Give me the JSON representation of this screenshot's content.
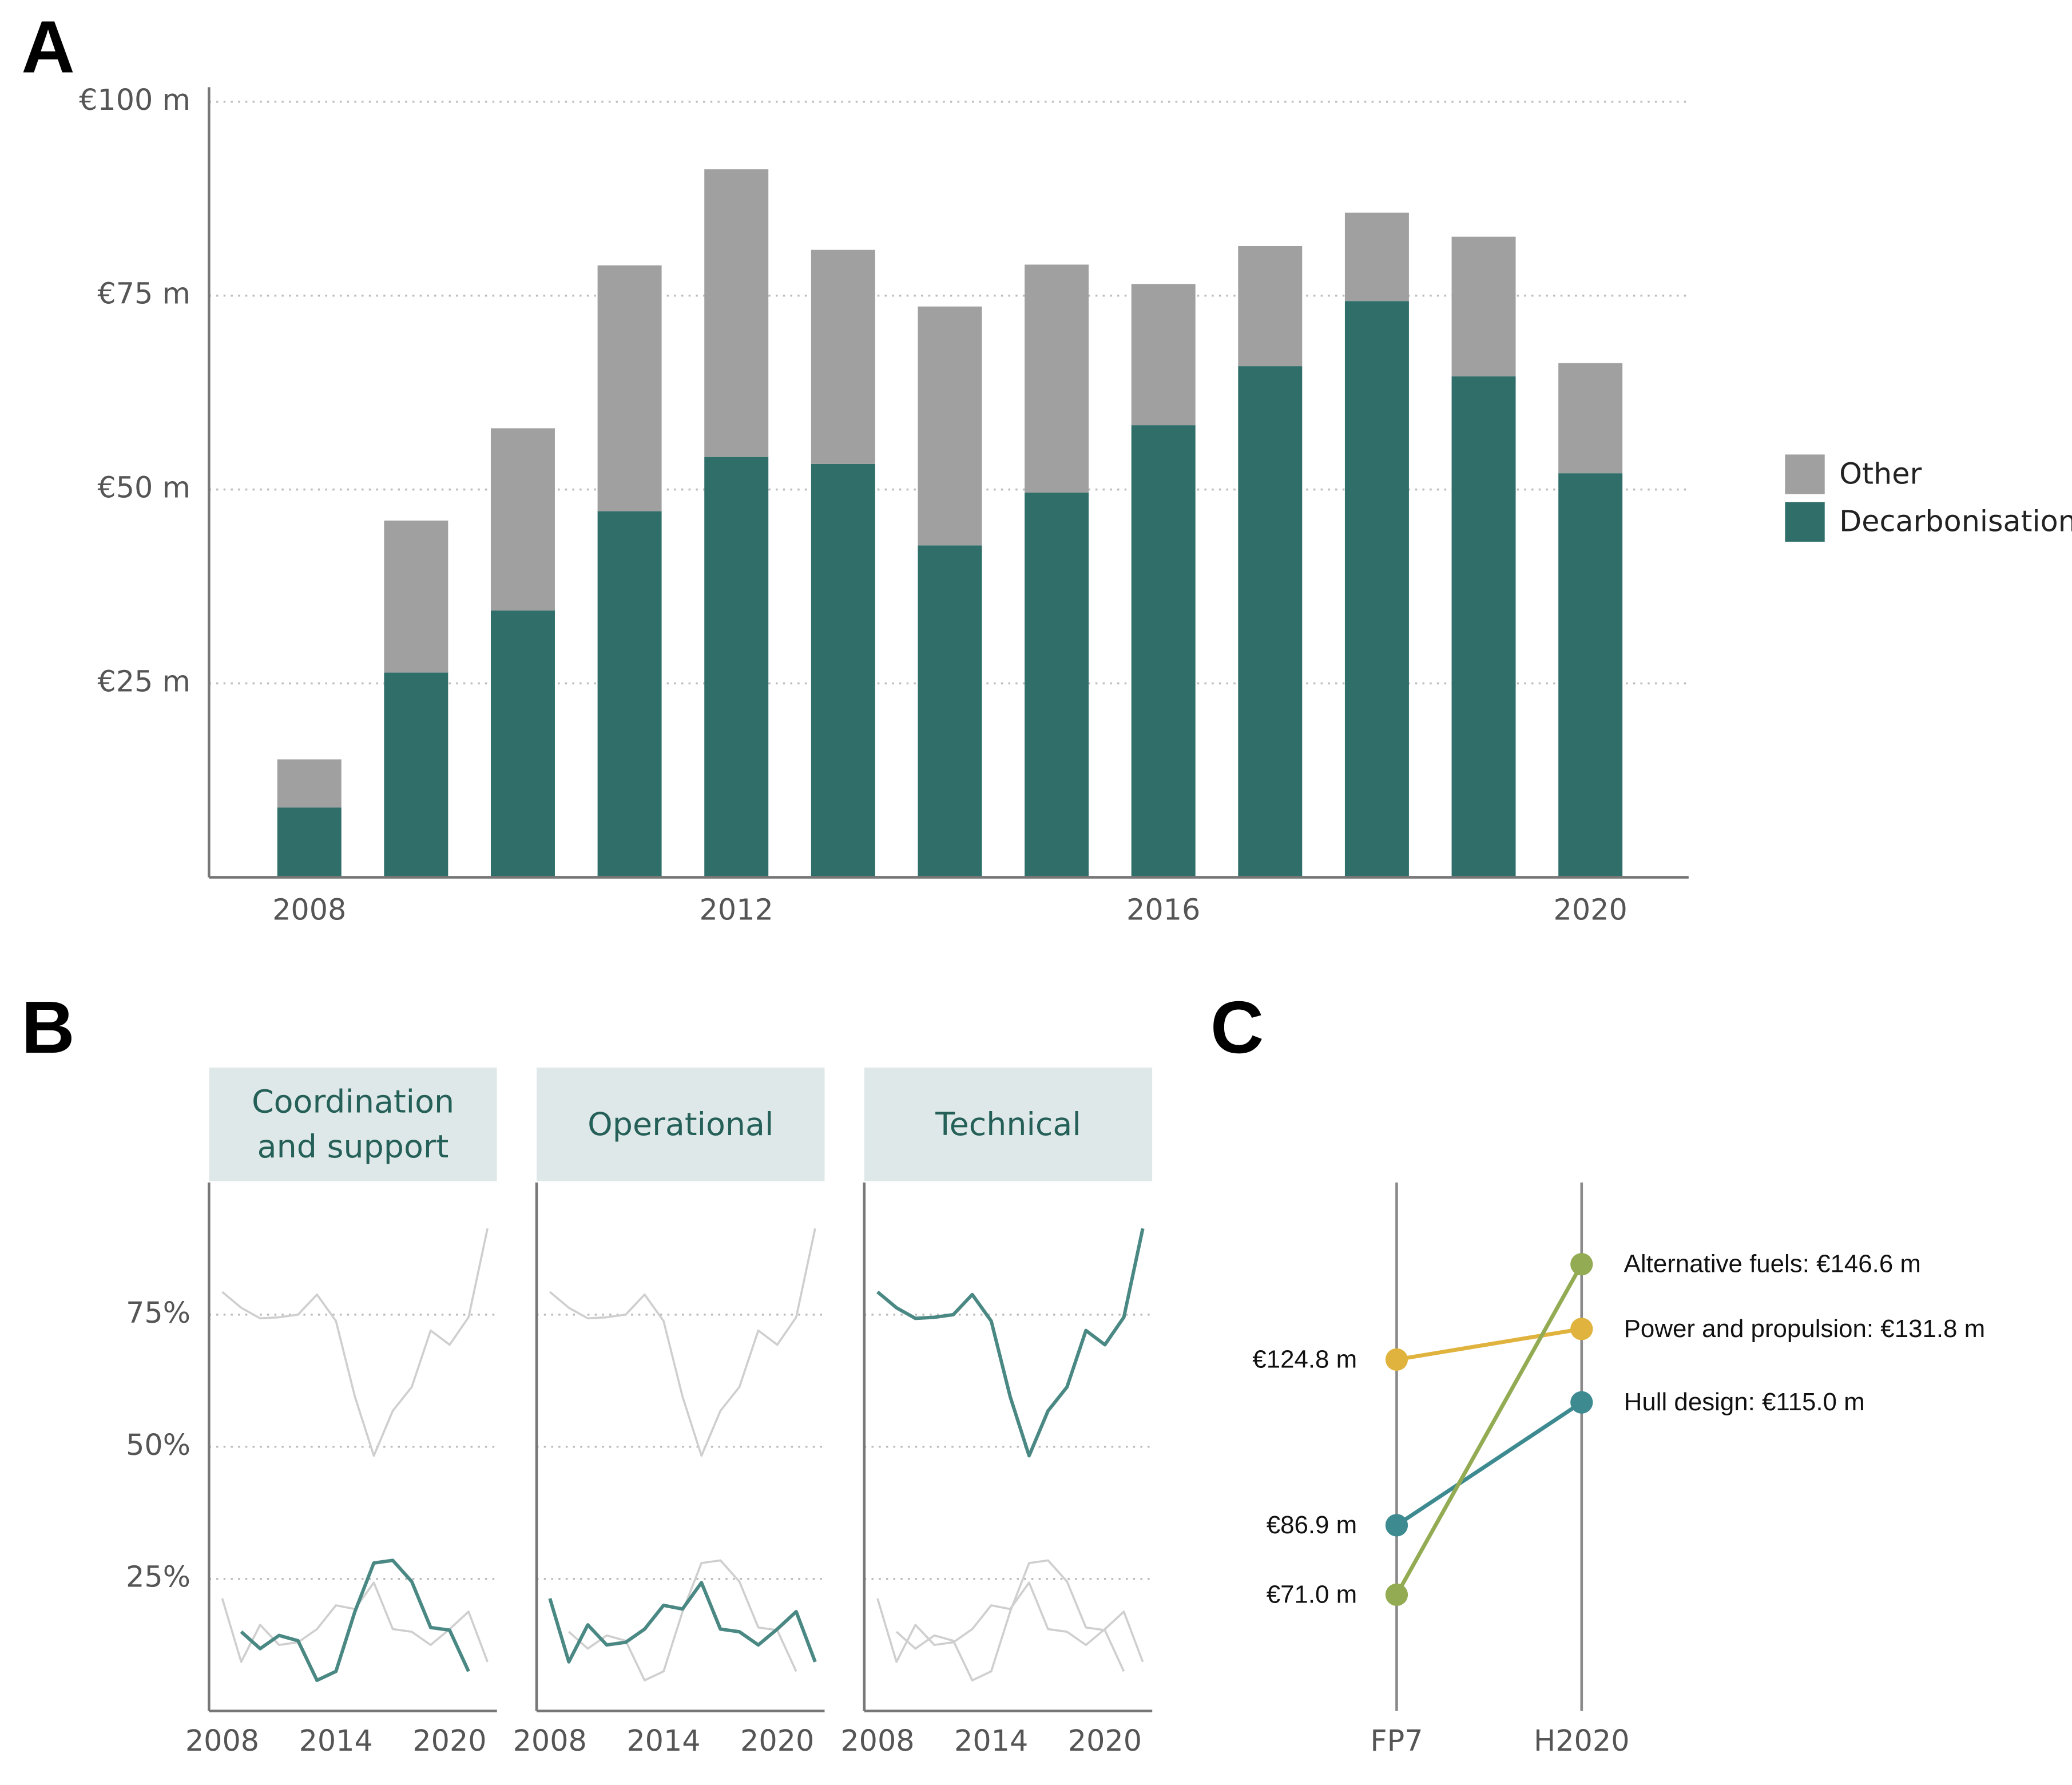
{
  "chart_data": [
    {
      "type": "bar",
      "stacked": true,
      "panel_label": "A",
      "x": [
        2008,
        2009,
        2010,
        2011,
        2012,
        2013,
        2014,
        2015,
        2016,
        2017,
        2018,
        2019,
        2020
      ],
      "series": [
        {
          "name": "Decarbonisation",
          "color": "#2f6e69",
          "values": [
            9.0,
            26.4,
            34.4,
            47.2,
            54.2,
            53.3,
            42.8,
            49.6,
            58.3,
            65.9,
            74.3,
            64.6,
            52.1
          ]
        },
        {
          "name": "Other",
          "color": "#a0a0a0",
          "values": [
            6.2,
            19.6,
            23.5,
            31.7,
            37.1,
            27.6,
            30.8,
            29.4,
            18.2,
            15.5,
            11.4,
            18.0,
            14.2
          ]
        }
      ],
      "xlim": [
        2007.06,
        2020.92
      ],
      "xticks": [
        2008,
        2012,
        2016,
        2020
      ],
      "ylim": [
        0,
        100
      ],
      "yticks": [
        {
          "value": 25,
          "label": "€25 m"
        },
        {
          "value": 50,
          "label": "€50 m"
        },
        {
          "value": 75,
          "label": "€75 m"
        },
        {
          "value": 100,
          "label": "€100 m"
        }
      ],
      "grid": true,
      "legend": "right"
    },
    {
      "type": "line",
      "facets": true,
      "panel_label": "B",
      "x": [
        2008,
        2009,
        2010,
        2011,
        2012,
        2013,
        2014,
        2015,
        2016,
        2017,
        2018,
        2019,
        2020,
        2021,
        2022
      ],
      "series": [
        {
          "name": "Coordination and support",
          "values": [
            null,
            15,
            11.8,
            14.3,
            13.3,
            5.8,
            7.5,
            18.8,
            28,
            28.5,
            24.5,
            15.8,
            15.3,
            7.5,
            null
          ]
        },
        {
          "name": "Operational",
          "values": [
            21.3,
            9.3,
            16.3,
            12.5,
            13,
            15.5,
            20,
            19.3,
            24.3,
            15.5,
            15,
            12.5,
            15.5,
            18.8,
            9.3
          ]
        },
        {
          "name": "Technical",
          "values": [
            79.3,
            76.3,
            74.3,
            74.5,
            75,
            78.8,
            73.8,
            59.5,
            48.3,
            56.8,
            61.3,
            72,
            69.3,
            74.5,
            91.3
          ]
        }
      ],
      "highlight_color": "#4a8883",
      "context_color": "#cfcfcf",
      "xlim": [
        2007.3,
        2022.5
      ],
      "xticks": [
        2008,
        2014,
        2020
      ],
      "ylim": [
        0,
        100
      ],
      "yticks": [
        {
          "value": 25,
          "label": "25%"
        },
        {
          "value": 50,
          "label": "50%"
        },
        {
          "value": 75,
          "label": "75%"
        }
      ],
      "grid": true
    },
    {
      "type": "slope",
      "panel_label": "C",
      "categories": [
        "FP7",
        "H2020"
      ],
      "series": [
        {
          "color": "#e0b33e",
          "values": [
            124.8,
            131.8
          ],
          "value_labels": [
            "€124.8 m",
            "Power and propulsion: €131.8 m"
          ]
        },
        {
          "color": "#3d8a90",
          "values": [
            86.9,
            115.0
          ],
          "value_labels": [
            "€86.9 m",
            "Hull design: €115.0 m"
          ]
        },
        {
          "color": "#93ab52",
          "values": [
            71.0,
            146.6
          ],
          "value_labels": [
            "€71.0 m",
            "Alternative fuels: €146.6 m"
          ]
        }
      ],
      "ylim": [
        44.4,
        165.3
      ]
    }
  ]
}
